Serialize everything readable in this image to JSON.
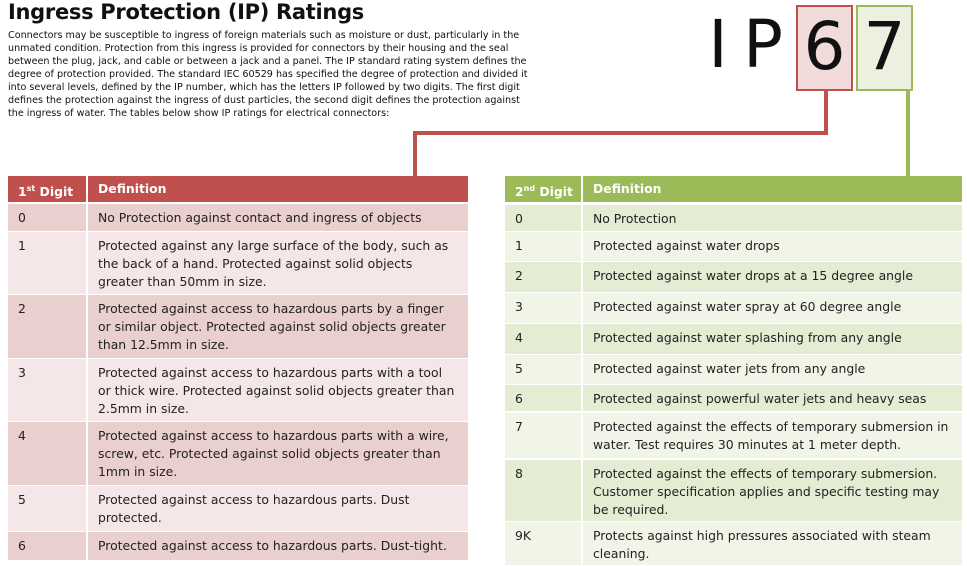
{
  "header": {
    "title": "Ingress Protection (IP) Ratings",
    "intro": "Connectors may be susceptible to ingress of foreign materials such as moisture or dust, particularly in the unmated condition. Protection from this ingress is provided for connectors by their housing and the seal between the plug, jack, and cable or between a jack and a panel. The IP standard rating system defines the degree of protection provided. The standard IEC 60529 has specified the degree of protection and divided it into several levels, defined by the IP number, which has the letters IP followed by two digits. The first digit defines the protection against the ingress of dust particles, the second digit defines the protection against the ingress of water. The tables below show IP ratings for electrical connectors:"
  },
  "code": {
    "letters": [
      "I",
      "P"
    ],
    "first_digit": "6",
    "second_digit": "7"
  },
  "tables": [
    {
      "columns": [
        {
          "number": "1",
          "suffix": "st",
          "label": "Digit"
        },
        "Definition"
      ],
      "rows": [
        [
          "0",
          "No Protection against contact and ingress of objects"
        ],
        [
          "1",
          "Protected against any large surface of the body, such as the back of a hand. Protected against solid objects greater than 50mm in size."
        ],
        [
          "2",
          "Protected against access to hazardous parts by a finger or similar object. Protected against solid objects greater than 12.5mm in size."
        ],
        [
          "3",
          "Protected against access to hazardous parts with a tool or thick wire. Protected against solid objects greater than 2.5mm in size."
        ],
        [
          "4",
          "Protected against access to hazardous parts with a wire, screw, etc. Protected against solid objects greater than 1mm in size."
        ],
        [
          "5",
          "Protected against access to hazardous parts. Dust protected."
        ],
        [
          "6",
          "Protected against access to hazardous parts. Dust-tight."
        ]
      ]
    },
    {
      "columns": [
        {
          "number": "2",
          "suffix": "nd",
          "label": "Digit"
        },
        "Definition"
      ],
      "rows": [
        [
          "0",
          "No Protection"
        ],
        [
          "1",
          "Protected against water drops"
        ],
        [
          "2",
          "Protected against water drops at a 15 degree angle"
        ],
        [
          "3",
          "Protected against water spray at 60 degree angle"
        ],
        [
          "4",
          "Protected against water splashing from any angle"
        ],
        [
          "5",
          "Protected against water jets from any angle"
        ],
        [
          "6",
          "Protected against powerful water jets and heavy seas"
        ],
        [
          "7",
          "Protected against the effects of temporary submersion in water. Test requires 30 minutes at 1 meter depth."
        ],
        [
          "8",
          "Protected against the effects of temporary submersion. Customer specification applies and specific testing may be required."
        ],
        [
          "9K",
          "Protects against high pressures associated with steam cleaning."
        ]
      ]
    }
  ]
}
